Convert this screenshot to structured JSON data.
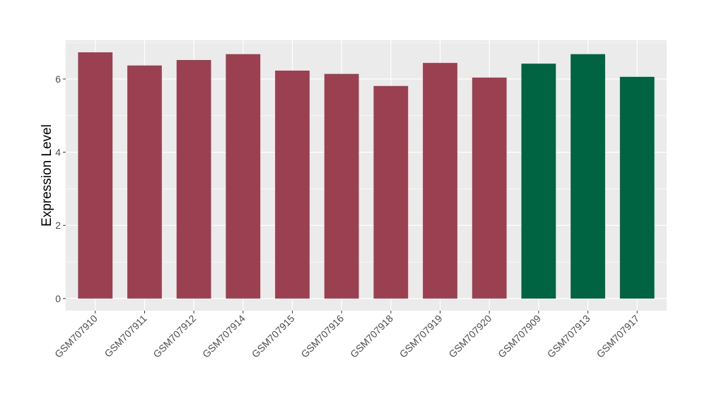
{
  "chart_data": {
    "type": "bar",
    "title": "",
    "xlabel": "",
    "ylabel": "Expression Level",
    "ylim": [
      -0.33,
      7.06
    ],
    "yticks": [
      0,
      2,
      4,
      6
    ],
    "grid": true,
    "categories": [
      "GSM707910",
      "GSM707911",
      "GSM707912",
      "GSM707914",
      "GSM707915",
      "GSM707916",
      "GSM707918",
      "GSM707919",
      "GSM707920",
      "GSM707909",
      "GSM707913",
      "GSM707917"
    ],
    "values": [
      6.73,
      6.37,
      6.52,
      6.68,
      6.23,
      6.14,
      5.81,
      6.44,
      6.04,
      6.42,
      6.68,
      6.06
    ],
    "groups": [
      0,
      0,
      0,
      0,
      0,
      0,
      0,
      0,
      0,
      1,
      1,
      1
    ],
    "colors": [
      "#9a4050",
      "#006443"
    ],
    "panel_background": "#ebebeb"
  }
}
